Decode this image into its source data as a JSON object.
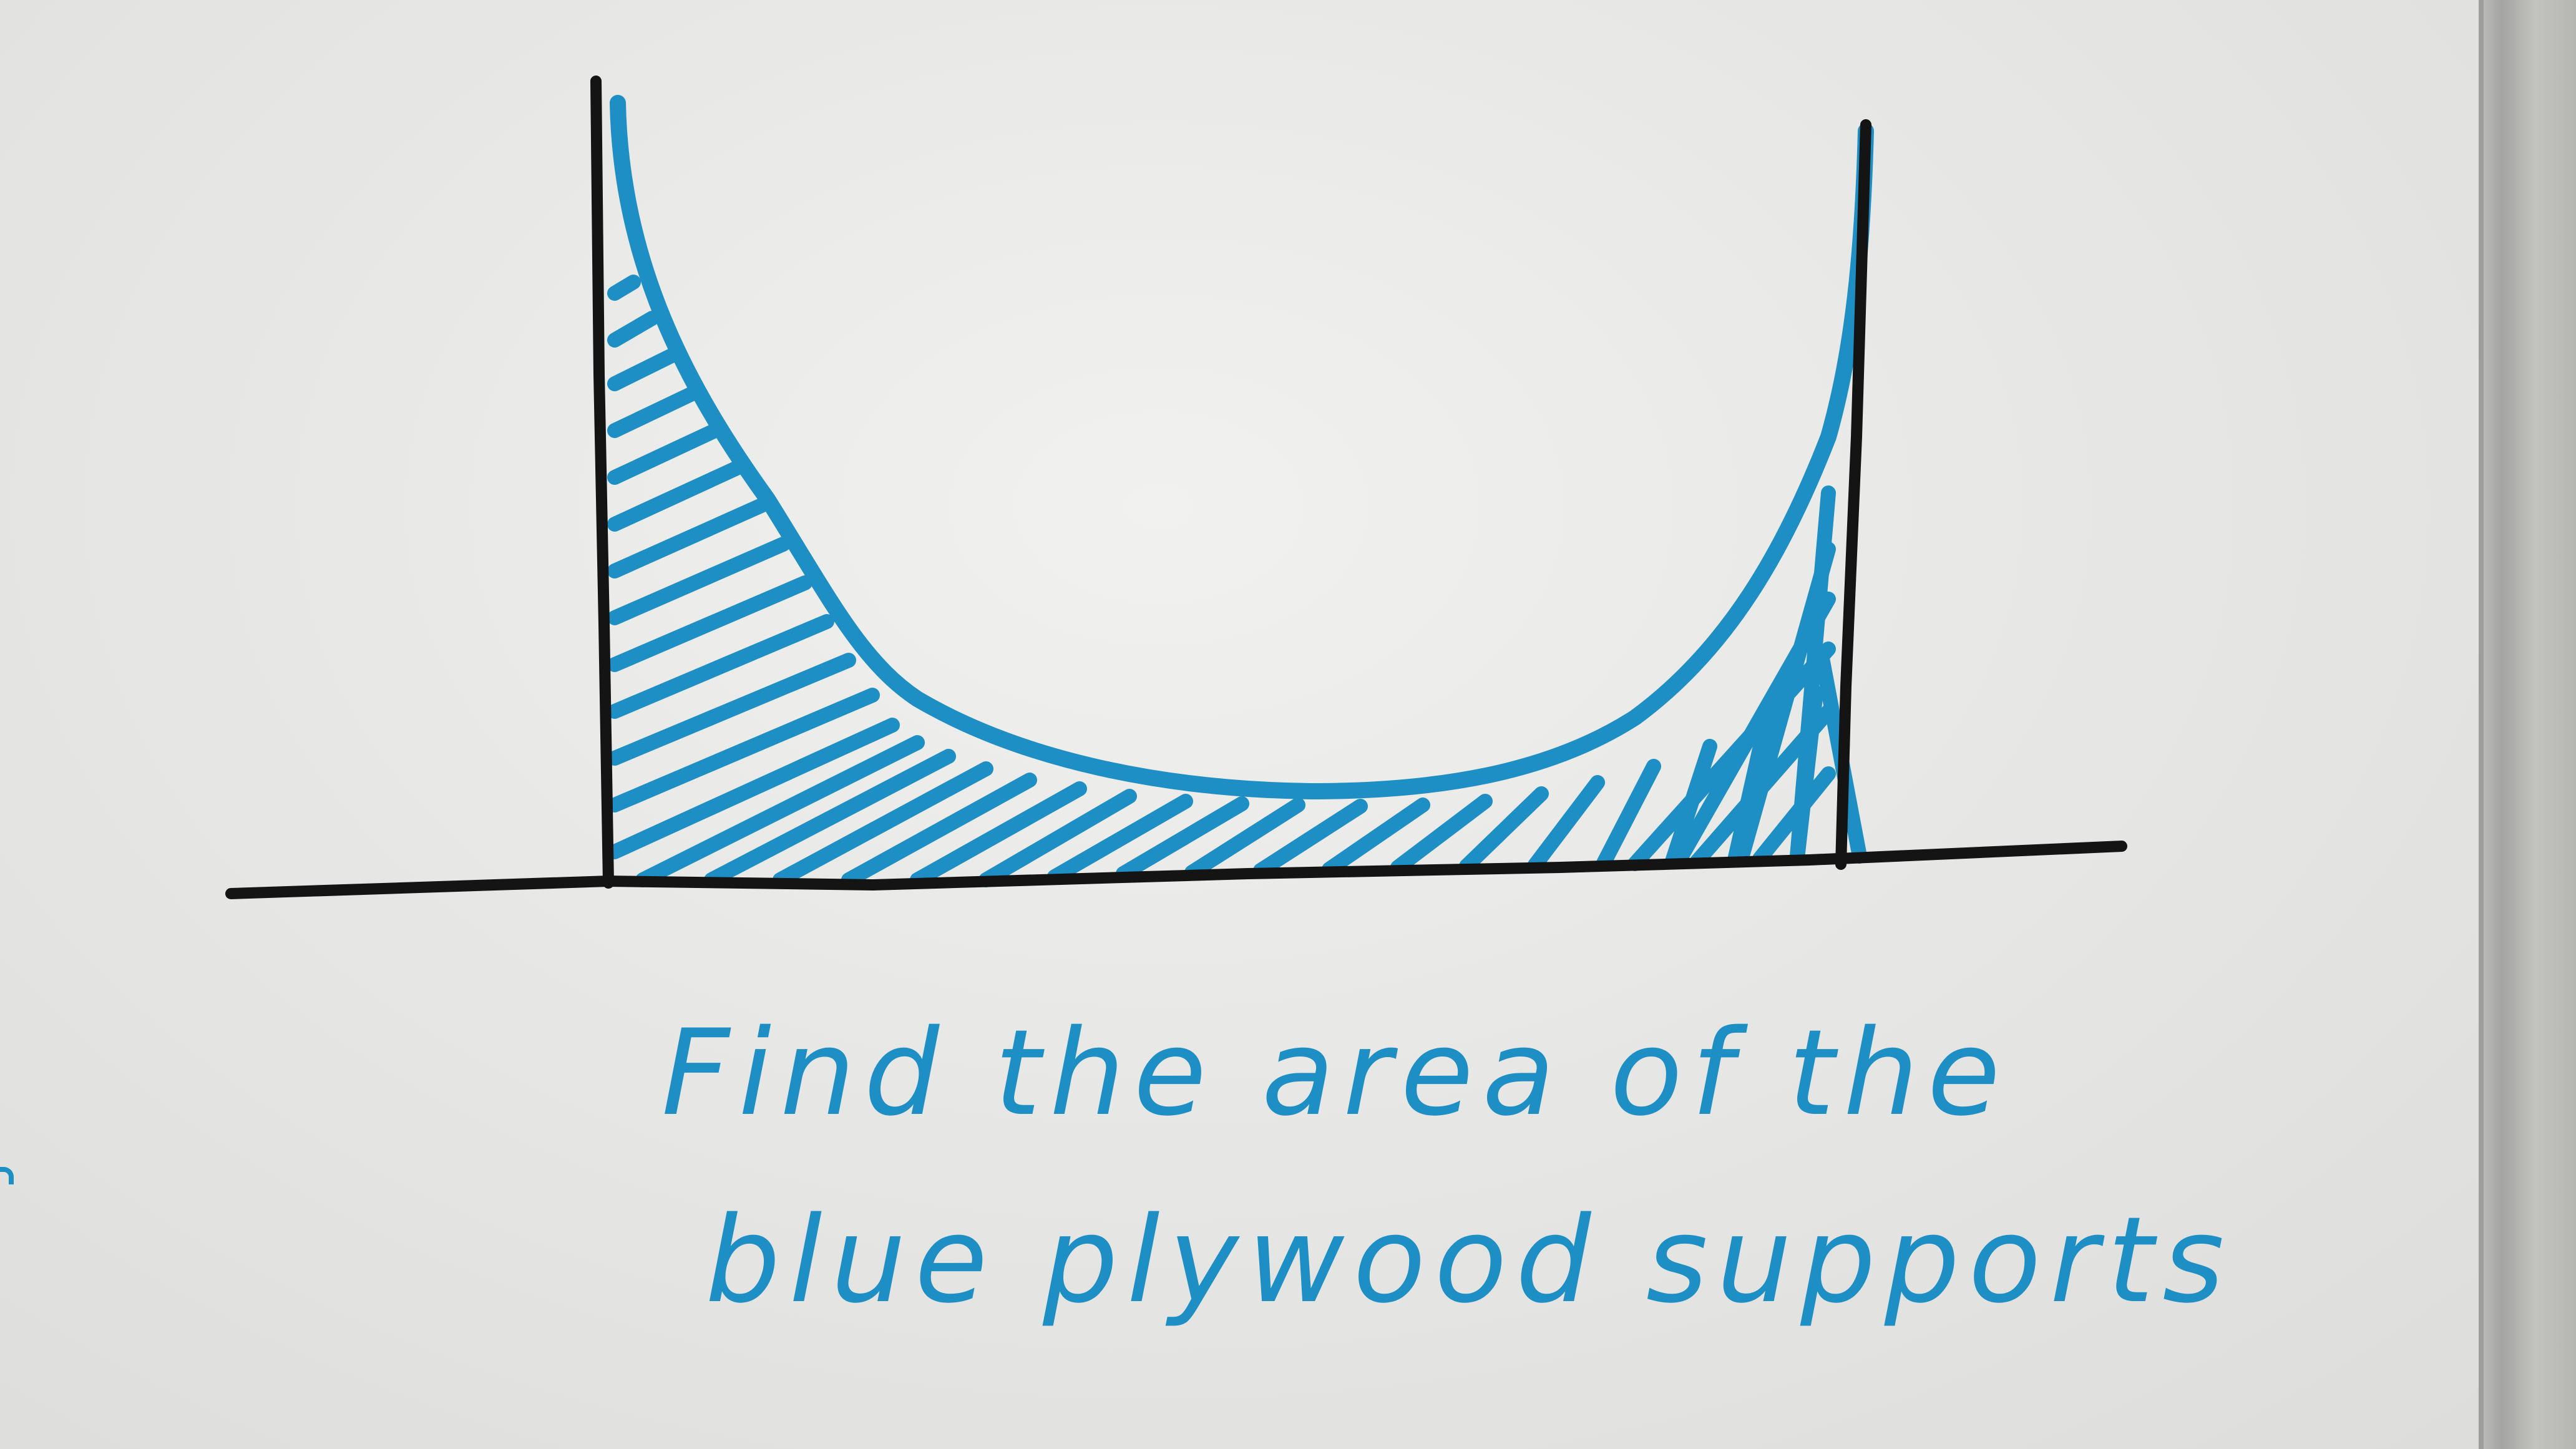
{
  "caption": {
    "line1": "Find the area of the",
    "line2": "blue plywood supports"
  },
  "colors": {
    "whiteboard": "#e9e9e7",
    "marker_black": "#141414",
    "marker_blue": "#1e8fc4",
    "board_frame": "#a8a8a6"
  }
}
